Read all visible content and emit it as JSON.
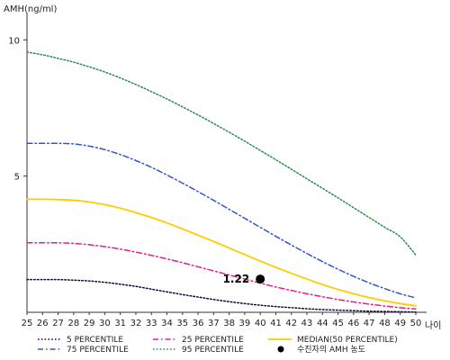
{
  "chart_data": {
    "type": "line",
    "ylabel": "AMH(ng/ml)",
    "xlabel": "나이",
    "x": [
      25,
      26,
      27,
      28,
      29,
      30,
      31,
      32,
      33,
      34,
      35,
      36,
      37,
      38,
      39,
      40,
      41,
      42,
      43,
      44,
      45,
      46,
      47,
      48,
      49,
      50
    ],
    "xlim": [
      25,
      50
    ],
    "ylim": [
      0,
      11
    ],
    "yticks": [
      5,
      10
    ],
    "grid": false,
    "legend_position": "bottom",
    "series": [
      {
        "name": "5 PERCENTILE",
        "style": "dotted",
        "color": "#0a0a3a",
        "values": [
          1.2,
          1.2,
          1.2,
          1.18,
          1.15,
          1.1,
          1.03,
          0.95,
          0.85,
          0.75,
          0.65,
          0.56,
          0.47,
          0.39,
          0.32,
          0.26,
          0.21,
          0.17,
          0.13,
          0.1,
          0.08,
          0.06,
          0.04,
          0.03,
          0.02,
          0.01
        ]
      },
      {
        "name": "25 PERCENTILE",
        "style": "dashdot",
        "color": "#e0208f",
        "values": [
          2.55,
          2.55,
          2.55,
          2.53,
          2.48,
          2.41,
          2.32,
          2.21,
          2.09,
          1.96,
          1.82,
          1.67,
          1.52,
          1.37,
          1.22,
          1.07,
          0.93,
          0.8,
          0.68,
          0.57,
          0.47,
          0.38,
          0.3,
          0.23,
          0.17,
          0.12
        ]
      },
      {
        "name": "MEDIAN(50 PERCENTILE)",
        "style": "solid",
        "color": "#ffcc00",
        "values": [
          4.15,
          4.15,
          4.14,
          4.11,
          4.05,
          3.95,
          3.82,
          3.66,
          3.48,
          3.28,
          3.06,
          2.83,
          2.6,
          2.36,
          2.12,
          1.88,
          1.65,
          1.43,
          1.22,
          1.02,
          0.84,
          0.68,
          0.54,
          0.42,
          0.32,
          0.24
        ]
      },
      {
        "name": "75 PERCENTILE",
        "style": "dashdot",
        "color": "#3355cc",
        "values": [
          6.2,
          6.2,
          6.2,
          6.18,
          6.1,
          5.97,
          5.79,
          5.57,
          5.32,
          5.04,
          4.74,
          4.43,
          4.11,
          3.78,
          3.45,
          3.12,
          2.79,
          2.47,
          2.16,
          1.86,
          1.58,
          1.32,
          1.08,
          0.87,
          0.68,
          0.53
        ]
      },
      {
        "name": "95 PERCENTILE",
        "style": "dotted",
        "color": "#2e8b4f",
        "values": [
          9.55,
          9.45,
          9.32,
          9.18,
          9.01,
          8.82,
          8.6,
          8.36,
          8.1,
          7.83,
          7.54,
          7.24,
          6.93,
          6.61,
          6.28,
          5.94,
          5.6,
          5.25,
          4.9,
          4.55,
          4.2,
          3.84,
          3.48,
          3.12,
          2.77,
          2.1
        ]
      }
    ],
    "marker": {
      "name": "수진자의 AMH 농도",
      "x": 40,
      "y": 1.22,
      "label": "1.22"
    }
  },
  "legend_colors": {
    "marker": "#000000"
  }
}
